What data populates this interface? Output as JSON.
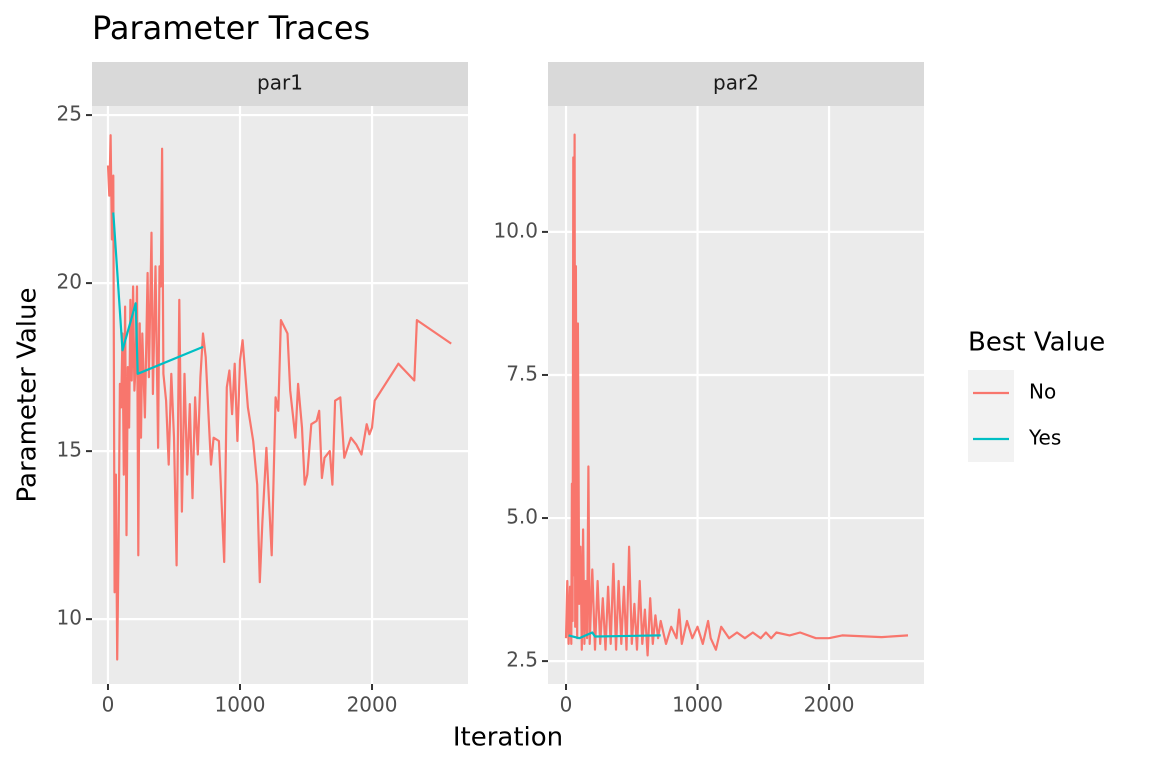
{
  "chart_data": {
    "type": "line",
    "title": "Parameter Traces",
    "x_label": "Iteration",
    "y_label": "Parameter Value",
    "legend_title": "Best Value",
    "grid": true,
    "panels": [
      {
        "title": "par1",
        "xlim": [
          -121,
          2727
        ],
        "xticks": [
          0,
          1000,
          2000
        ],
        "ylim": [
          8.07,
          25.27
        ],
        "yticks": [
          10,
          15,
          20,
          25
        ],
        "series": [
          {
            "name": "No",
            "color": "#f8766d",
            "x": [
              0,
              10,
              20,
              30,
              40,
              50,
              60,
              70,
              80,
              90,
              100,
              110,
              120,
              130,
              140,
              150,
              160,
              170,
              180,
              190,
              200,
              210,
              220,
              230,
              240,
              250,
              260,
              280,
              300,
              310,
              330,
              340,
              360,
              380,
              390,
              400,
              410,
              420,
              440,
              460,
              480,
              500,
              520,
              540,
              560,
              580,
              600,
              620,
              640,
              660,
              680,
              700,
              720,
              740,
              760,
              780,
              800,
              840,
              880,
              900,
              920,
              940,
              960,
              980,
              1000,
              1020,
              1060,
              1100,
              1130,
              1150,
              1170,
              1200,
              1240,
              1270,
              1290,
              1310,
              1360,
              1380,
              1420,
              1440,
              1470,
              1490,
              1510,
              1540,
              1580,
              1600,
              1620,
              1640,
              1680,
              1700,
              1720,
              1760,
              1790,
              1840,
              1880,
              1920,
              1960,
              1980,
              2000,
              2020,
              2200,
              2320,
              2340,
              2600
            ],
            "values": [
              23.5,
              22.6,
              24.4,
              21.3,
              23.2,
              10.8,
              14.3,
              8.8,
              12,
              17,
              16.3,
              18.5,
              14.3,
              19.3,
              12.5,
              17.5,
              15.7,
              19.5,
              17.1,
              19.9,
              16.8,
              17.6,
              19.9,
              11.9,
              18.8,
              15.4,
              18.5,
              16,
              20.3,
              17.2,
              21.5,
              16.7,
              20.5,
              15.1,
              20.5,
              19.9,
              24,
              17.3,
              16.5,
              14.6,
              17.3,
              15.4,
              11.6,
              19.5,
              13.2,
              17.3,
              14.3,
              16.4,
              13.6,
              16.6,
              14.9,
              17.2,
              18.5,
              17.8,
              16.2,
              14.6,
              15.4,
              15.3,
              11.7,
              16.9,
              17.4,
              16.1,
              17.6,
              15.3,
              17.7,
              18.3,
              16.3,
              15.3,
              14,
              11.1,
              12.9,
              15.1,
              11.9,
              16.6,
              16.2,
              18.9,
              18.5,
              16.8,
              15.4,
              17,
              15.7,
              14,
              14.3,
              15.8,
              15.9,
              16.2,
              14.2,
              14.8,
              15,
              14,
              16.5,
              16.6,
              14.8,
              15.4,
              15.2,
              14.9,
              15.8,
              15.5,
              15.7,
              16.5,
              17.6,
              17.1,
              18.9,
              18.2
            ]
          },
          {
            "name": "Yes",
            "color": "#00bfc4",
            "x": [
              40,
              110,
              210,
              225,
              720
            ],
            "values": [
              22.1,
              18,
              19.4,
              17.3,
              18.1
            ]
          }
        ]
      },
      {
        "title": "par2",
        "xlim": [
          -137,
          2722
        ],
        "xticks": [
          0,
          1000,
          2000
        ],
        "ylim": [
          2.1,
          12.2
        ],
        "yticks": [
          {
            "value": 2.5,
            "label": "2.5"
          },
          {
            "value": 5,
            "label": "5.0"
          },
          {
            "value": 7.5,
            "label": "7.5"
          },
          {
            "value": 10,
            "label": "10.0"
          }
        ],
        "series": [
          {
            "name": "No",
            "color": "#f8766d",
            "x": [
              0,
              10,
              20,
              30,
              40,
              45,
              50,
              55,
              60,
              65,
              70,
              75,
              80,
              85,
              90,
              100,
              110,
              120,
              130,
              140,
              150,
              160,
              170,
              180,
              200,
              220,
              240,
              260,
              280,
              300,
              320,
              340,
              360,
              380,
              400,
              420,
              440,
              460,
              480,
              500,
              520,
              540,
              560,
              580,
              600,
              620,
              640,
              660,
              680,
              700,
              720,
              760,
              800,
              840,
              860,
              880,
              920,
              960,
              1000,
              1040,
              1080,
              1100,
              1140,
              1180,
              1240,
              1300,
              1360,
              1420,
              1480,
              1520,
              1560,
              1600,
              1700,
              1780,
              1900,
              2000,
              2100,
              2400,
              2600
            ],
            "values": [
              2.9,
              3.9,
              2.8,
              3.8,
              2.8,
              5.6,
              3.2,
              11.3,
              4,
              11.7,
              3.1,
              9.4,
              5,
              2.9,
              8.4,
              3.5,
              4.5,
              2.7,
              4.8,
              2.8,
              3.9,
              2.9,
              5.9,
              2.8,
              4.1,
              2.7,
              3.9,
              2.8,
              3.6,
              2.7,
              3.8,
              2.8,
              4.2,
              2.7,
              3.9,
              2.8,
              3.8,
              2.7,
              4.5,
              2.8,
              3.5,
              2.7,
              3.9,
              2.8,
              3.4,
              2.6,
              3.6,
              2.8,
              3.3,
              2.9,
              3.2,
              2.8,
              3.1,
              2.9,
              3.4,
              2.8,
              3.2,
              2.9,
              3.1,
              2.8,
              3.2,
              2.9,
              2.7,
              3.1,
              2.9,
              3,
              2.9,
              3,
              2.9,
              3,
              2.9,
              3,
              2.95,
              3,
              2.9,
              2.9,
              2.95,
              2.92,
              2.95
            ]
          },
          {
            "name": "Yes",
            "color": "#00bfc4",
            "x": [
              20,
              100,
              200,
              220,
              720
            ],
            "values": [
              2.95,
              2.9,
              3,
              2.93,
              2.95
            ]
          }
        ]
      }
    ]
  }
}
